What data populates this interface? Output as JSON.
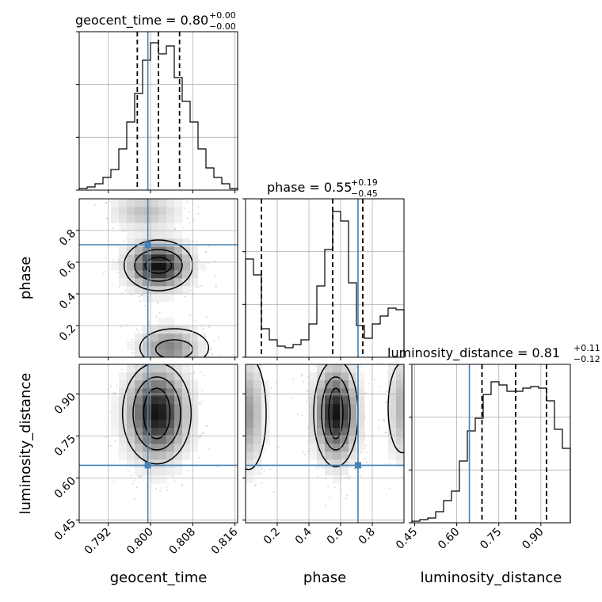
{
  "chart_data": {
    "type": "corner",
    "parameters": [
      "geocent_time",
      "phase",
      "luminosity_distance"
    ],
    "truth": {
      "geocent_time": 0.7995,
      "phase": 0.71,
      "luminosity_distance": 0.645
    },
    "ranges": {
      "geocent_time": [
        0.7865,
        0.8165
      ],
      "phase": [
        0.0,
        1.0
      ],
      "luminosity_distance": [
        0.44,
        1.005
      ]
    },
    "ticks": {
      "geocent_time": [
        "0.792",
        "0.800",
        "0.808",
        "0.816"
      ],
      "phase": [
        "0.2",
        "0.4",
        "0.6",
        "0.8"
      ],
      "luminosity_distance": [
        "0.45",
        "0.60",
        "0.75",
        "0.90"
      ]
    },
    "tick_values": {
      "geocent_time": [
        0.792,
        0.8,
        0.808,
        0.816
      ],
      "phase": [
        0.2,
        0.4,
        0.6,
        0.8
      ],
      "luminosity_distance": [
        0.45,
        0.6,
        0.75,
        0.9
      ]
    },
    "quantile_lines": {
      "geocent_time": [
        0.7975,
        0.8015,
        0.8055
      ],
      "phase": [
        0.1,
        0.55,
        0.74
      ],
      "luminosity_distance": [
        0.69,
        0.81,
        0.92
      ]
    },
    "titles": {
      "geocent_time": {
        "label": "geocent_time = 0.80",
        "upper": "+0.00",
        "lower": "−0.00"
      },
      "phase": {
        "label": "phase = 0.55",
        "upper": "+0.19",
        "lower": "−0.45"
      },
      "luminosity_distance": {
        "label": "luminosity_distance = 0.81",
        "upper": "+0.11",
        "lower": "−0.12"
      }
    },
    "histograms": {
      "geocent_time": [
        0.01,
        0.02,
        0.04,
        0.08,
        0.13,
        0.26,
        0.43,
        0.61,
        0.82,
        0.93,
        0.86,
        0.91,
        0.71,
        0.56,
        0.43,
        0.26,
        0.14,
        0.08,
        0.04,
        0.01
      ],
      "phase": [
        0.62,
        0.52,
        0.18,
        0.11,
        0.07,
        0.06,
        0.08,
        0.11,
        0.21,
        0.45,
        0.68,
        0.92,
        0.86,
        0.47,
        0.2,
        0.12,
        0.21,
        0.26,
        0.31,
        0.3
      ],
      "luminosity_distance": [
        0.01,
        0.02,
        0.03,
        0.07,
        0.14,
        0.2,
        0.39,
        0.58,
        0.66,
        0.81,
        0.89,
        0.87,
        0.83,
        0.83,
        0.85,
        0.86,
        0.85,
        0.77,
        0.59,
        0.47
      ]
    },
    "grid": true,
    "truth_color": "#4682b4"
  }
}
